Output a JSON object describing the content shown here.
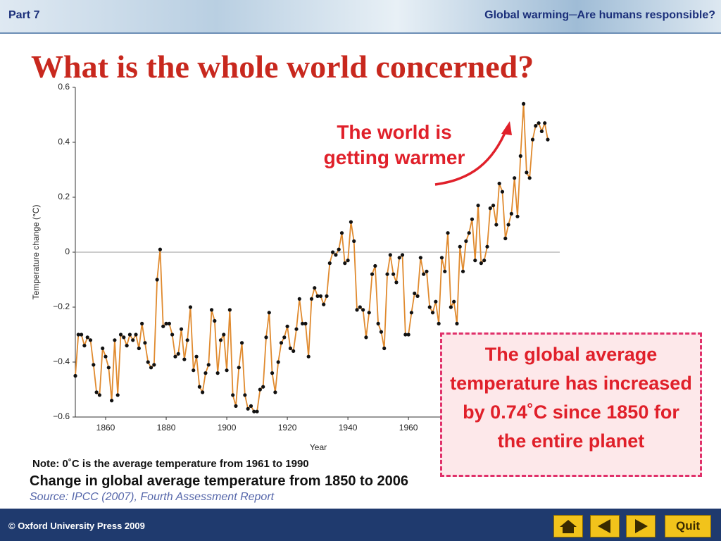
{
  "header": {
    "part": "Part 7",
    "topic": "Global warming─Are humans responsible?"
  },
  "title": "What is the whole world concerned?",
  "chart_data": {
    "type": "line",
    "xlabel": "Year",
    "ylabel": "Temperature change (°C)",
    "x": [
      1850,
      1851,
      1852,
      1853,
      1854,
      1855,
      1856,
      1857,
      1858,
      1859,
      1860,
      1861,
      1862,
      1863,
      1864,
      1865,
      1866,
      1867,
      1868,
      1869,
      1870,
      1871,
      1872,
      1873,
      1874,
      1875,
      1876,
      1877,
      1878,
      1879,
      1880,
      1881,
      1882,
      1883,
      1884,
      1885,
      1886,
      1887,
      1888,
      1889,
      1890,
      1891,
      1892,
      1893,
      1894,
      1895,
      1896,
      1897,
      1898,
      1899,
      1900,
      1901,
      1902,
      1903,
      1904,
      1905,
      1906,
      1907,
      1908,
      1909,
      1910,
      1911,
      1912,
      1913,
      1914,
      1915,
      1916,
      1917,
      1918,
      1919,
      1920,
      1921,
      1922,
      1923,
      1924,
      1925,
      1926,
      1927,
      1928,
      1929,
      1930,
      1931,
      1932,
      1933,
      1934,
      1935,
      1936,
      1937,
      1938,
      1939,
      1940,
      1941,
      1942,
      1943,
      1944,
      1945,
      1946,
      1947,
      1948,
      1949,
      1950,
      1951,
      1952,
      1953,
      1954,
      1955,
      1956,
      1957,
      1958,
      1959,
      1960,
      1961,
      1962,
      1963,
      1964,
      1965,
      1966,
      1967,
      1968,
      1969,
      1970,
      1971,
      1972,
      1973,
      1974,
      1975,
      1976,
      1977,
      1978,
      1979,
      1980,
      1981,
      1982,
      1983,
      1984,
      1985,
      1986,
      1987,
      1988,
      1989,
      1990,
      1991,
      1992,
      1993,
      1994,
      1995,
      1996,
      1997,
      1998,
      1999,
      2000,
      2001,
      2002,
      2003,
      2004,
      2005,
      2006
    ],
    "values": [
      -0.45,
      -0.3,
      -0.3,
      -0.34,
      -0.31,
      -0.32,
      -0.41,
      -0.51,
      -0.52,
      -0.35,
      -0.38,
      -0.42,
      -0.54,
      -0.32,
      -0.52,
      -0.3,
      -0.31,
      -0.34,
      -0.3,
      -0.32,
      -0.3,
      -0.35,
      -0.26,
      -0.33,
      -0.4,
      -0.42,
      -0.41,
      -0.1,
      0.01,
      -0.27,
      -0.26,
      -0.26,
      -0.3,
      -0.38,
      -0.37,
      -0.28,
      -0.39,
      -0.32,
      -0.2,
      -0.43,
      -0.38,
      -0.49,
      -0.51,
      -0.44,
      -0.41,
      -0.21,
      -0.25,
      -0.44,
      -0.32,
      -0.3,
      -0.43,
      -0.21,
      -0.52,
      -0.56,
      -0.42,
      -0.33,
      -0.52,
      -0.57,
      -0.56,
      -0.58,
      -0.58,
      -0.5,
      -0.49,
      -0.31,
      -0.22,
      -0.44,
      -0.51,
      -0.4,
      -0.33,
      -0.31,
      -0.27,
      -0.35,
      -0.36,
      -0.28,
      -0.17,
      -0.26,
      -0.26,
      -0.38,
      -0.17,
      -0.13,
      -0.16,
      -0.16,
      -0.19,
      -0.16,
      -0.04,
      0.0,
      -0.01,
      0.01,
      0.07,
      -0.04,
      -0.03,
      0.11,
      0.04,
      -0.21,
      -0.2,
      -0.21,
      -0.31,
      -0.22,
      -0.08,
      -0.05,
      -0.26,
      -0.29,
      -0.35,
      -0.08,
      -0.01,
      -0.08,
      -0.11,
      -0.02,
      -0.01,
      -0.3,
      -0.3,
      -0.22,
      -0.15,
      -0.16,
      -0.02,
      -0.08,
      -0.07,
      -0.2,
      -0.22,
      -0.18,
      -0.26,
      -0.02,
      -0.07,
      0.07,
      -0.2,
      -0.18,
      -0.26,
      0.02,
      -0.07,
      0.04,
      0.07,
      0.12,
      -0.03,
      0.17,
      -0.04,
      -0.03,
      0.02,
      0.16,
      0.17,
      0.1,
      0.25,
      0.22,
      0.05,
      0.1,
      0.14,
      0.27,
      0.13,
      0.35,
      0.54,
      0.29,
      0.27,
      0.41,
      0.46,
      0.47,
      0.44,
      0.47,
      0.41
    ],
    "color": "#e08a2e",
    "marker_color": "#111111",
    "xlim": [
      1850,
      2006
    ],
    "xticks": [
      1860,
      1880,
      1900,
      1920,
      1940,
      1960
    ],
    "ylim": [
      -0.6,
      0.6
    ],
    "yticks": [
      {
        "value": -0.6,
        "label": "−0.6"
      },
      {
        "value": -0.4,
        "label": "−0.4"
      },
      {
        "value": -0.2,
        "label": "−0.2"
      },
      0,
      0.2,
      0.4,
      0.6
    ],
    "annotation": "The world is getting warmer"
  },
  "callout": "The global average temperature has increased by 0.74˚C since 1850 for the entire planet",
  "note": "Note: 0˚C is the average temperature from 1961 to 1990",
  "caption": "Change in global average temperature from 1850 to 2006",
  "source": "Source: IPCC (2007), Fourth Assessment Report",
  "footer": {
    "copyright": "© Oxford University Press 2009",
    "quit": "Quit"
  }
}
